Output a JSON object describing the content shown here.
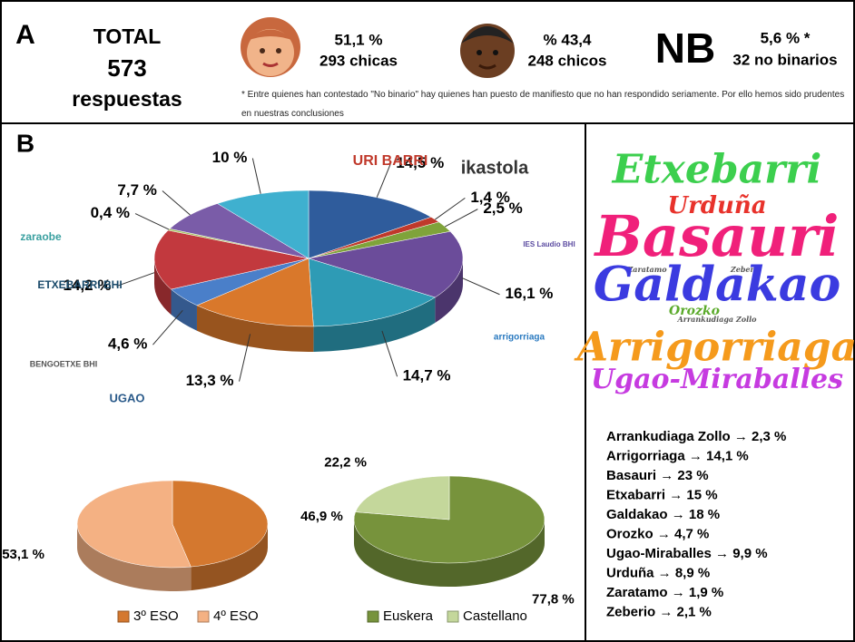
{
  "panel_a": {
    "letter": "A",
    "total_title": "TOTAL",
    "total_number": "573",
    "total_unit": "respuestas",
    "girls_pct": "51,1 %",
    "girls_count": "293 chicas",
    "boys_pct": "% 43,4",
    "boys_count": "248 chicos",
    "nb_title": "NB",
    "nb_pct": "5,6 % *",
    "nb_count": "32 no binarios",
    "footnote": "* Entre quienes han contestado \"No binario\" hay quienes han puesto de manifiesto que no han respondido seriamente. Por ello hemos sido prudentes en nuestras conclusiones"
  },
  "panel_b": {
    "letter": "B",
    "logos": [
      "URI BARRI",
      "ikastola",
      "zaraobe",
      "ETXEBARRI BHI",
      "BENGOETXE BHI",
      "arrigorriaga",
      "IES Laudio BHI",
      "UGAO"
    ]
  },
  "chart_data": [
    {
      "type": "pie",
      "values": [
        14.5,
        1.4,
        2.5,
        16.1,
        14.7,
        13.3,
        4.6,
        14.2,
        0.4,
        7.7,
        10
      ],
      "value_labels": [
        "14,5 %",
        "1,4 %",
        "2,5 %",
        "16,1 %",
        "14,7 %",
        "13,3 %",
        "4,6 %",
        "14,2 %",
        "0,4 %",
        "7,7 %",
        "10 %"
      ],
      "colors": [
        "#2f5c9c",
        "#c0392b",
        "#7fa33a",
        "#6b4c9a",
        "#2e9bb5",
        "#d9782b",
        "#4a7fc9",
        "#c2393e",
        "#a7c25f",
        "#7a5ca8",
        "#3fb0cf"
      ]
    },
    {
      "type": "pie",
      "categories": [
        "3º ESO",
        "4º ESO"
      ],
      "values": [
        46.9,
        53.1
      ],
      "value_labels": [
        "46,9 %",
        "53,1 %"
      ],
      "colors": [
        "#d4782f",
        "#f4b183"
      ]
    },
    {
      "type": "pie",
      "categories": [
        "Euskera",
        "Castellano"
      ],
      "values": [
        77.8,
        22.2
      ],
      "value_labels": [
        "77,8 %",
        "22,2 %"
      ],
      "colors": [
        "#77933c",
        "#c4d79b"
      ]
    }
  ],
  "word_cloud": [
    "Etxebarri",
    "Urduña",
    "Basauri",
    "Zaratamo",
    "Zeberio",
    "Galdakao",
    "Orozko",
    "Arrankudiaga Zollo",
    "Arrigorriaga",
    "Ugao-Miraballes"
  ],
  "municipalities": [
    "Arrankudiaga Zollo → 2,3 %",
    "Arrigorriaga → 14,1 %",
    "Basauri → 23 %",
    "Etxabarri → 15 %",
    "Galdakao → 18 %",
    "Orozko → 4,7 %",
    "Ugao-Miraballes → 9,9 %",
    "Urduña → 8,9 %",
    "Zaratamo → 1,9 %",
    "Zeberio → 2,1 %"
  ]
}
